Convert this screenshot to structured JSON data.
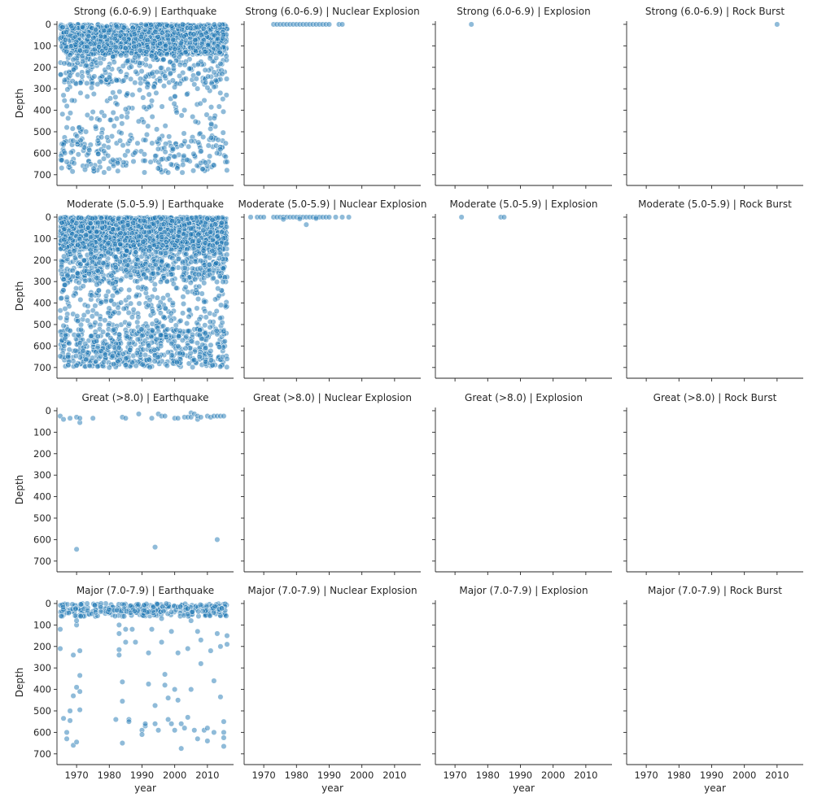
{
  "chart_data": {
    "type": "scatter",
    "facet_grid": {
      "rows": [
        "Strong (6.0-6.9)",
        "Moderate (5.0-5.9)",
        "Great (>8.0)",
        "Major (7.0-7.9)"
      ],
      "cols": [
        "Earthquake",
        "Nuclear Explosion",
        "Explosion",
        "Rock Burst"
      ]
    },
    "xlabel": "year",
    "ylabel": "Depth",
    "xlim": [
      1964,
      2018
    ],
    "ylim": [
      750,
      -15
    ],
    "y_inverted": true,
    "x_ticks": [
      1970,
      1980,
      1990,
      2000,
      2010
    ],
    "y_ticks": [
      0,
      100,
      200,
      300,
      400,
      500,
      600,
      700
    ],
    "grid": false,
    "marker_color": "#1f77b4",
    "marker_alpha": 0.5,
    "panels": [
      {
        "row": 0,
        "col": 0,
        "title": "Strong (6.0-6.9) | Earthquake",
        "dense_regions": [
          {
            "x_range": [
              1965,
              2016
            ],
            "y_range": [
              0,
              140
            ],
            "count": 1500
          },
          {
            "x_range": [
              1965,
              2016
            ],
            "y_range": [
              140,
              280
            ],
            "count": 260
          },
          {
            "x_range": [
              1965,
              2016
            ],
            "y_range": [
              280,
              520
            ],
            "count": 120
          },
          {
            "x_range": [
              1965,
              2016
            ],
            "y_range": [
              520,
              690
            ],
            "count": 220
          }
        ],
        "points": [
          [
            1966,
            330
          ],
          [
            1967,
            480
          ],
          [
            1966,
            560
          ],
          [
            1967,
            640
          ],
          [
            2016,
            640
          ],
          [
            1977,
            445
          ],
          [
            1985,
            395
          ],
          [
            1998,
            690
          ]
        ]
      },
      {
        "row": 0,
        "col": 1,
        "title": "Strong (6.0-6.9) | Nuclear Explosion",
        "points": [
          [
            1973,
            0
          ],
          [
            1974,
            0
          ],
          [
            1975,
            0
          ],
          [
            1976,
            0
          ],
          [
            1977,
            0
          ],
          [
            1978,
            0
          ],
          [
            1979,
            0
          ],
          [
            1980,
            0
          ],
          [
            1981,
            0
          ],
          [
            1982,
            0
          ],
          [
            1983,
            0
          ],
          [
            1984,
            0
          ],
          [
            1985,
            0
          ],
          [
            1986,
            0
          ],
          [
            1987,
            0
          ],
          [
            1988,
            0
          ],
          [
            1989,
            0
          ],
          [
            1990,
            0
          ],
          [
            1993,
            0
          ],
          [
            1994,
            0
          ]
        ]
      },
      {
        "row": 0,
        "col": 2,
        "title": "Strong (6.0-6.9) | Explosion",
        "points": [
          [
            1975,
            0
          ]
        ]
      },
      {
        "row": 0,
        "col": 3,
        "title": "Strong (6.0-6.9) | Rock Burst",
        "points": [
          [
            2010,
            0
          ]
        ]
      },
      {
        "row": 1,
        "col": 0,
        "title": "Moderate (5.0-5.9) | Earthquake",
        "dense_regions": [
          {
            "x_range": [
              1965,
              2016
            ],
            "y_range": [
              0,
              150
            ],
            "count": 2500
          },
          {
            "x_range": [
              1965,
              2016
            ],
            "y_range": [
              150,
              300
            ],
            "count": 500
          },
          {
            "x_range": [
              1965,
              2016
            ],
            "y_range": [
              300,
              520
            ],
            "count": 250
          },
          {
            "x_range": [
              1965,
              2016
            ],
            "y_range": [
              520,
              700
            ],
            "count": 550
          }
        ],
        "points": [
          [
            1966,
            340
          ],
          [
            1967,
            470
          ],
          [
            1970,
            690
          ],
          [
            1980,
            700
          ],
          [
            2016,
            660
          ]
        ]
      },
      {
        "row": 1,
        "col": 1,
        "title": "Moderate (5.0-5.9) | Nuclear Explosion",
        "points": [
          [
            1966,
            0
          ],
          [
            1968,
            0
          ],
          [
            1969,
            0
          ],
          [
            1970,
            0
          ],
          [
            1973,
            0
          ],
          [
            1974,
            0
          ],
          [
            1975,
            0
          ],
          [
            1976,
            0
          ],
          [
            1977,
            0
          ],
          [
            1978,
            0
          ],
          [
            1979,
            0
          ],
          [
            1980,
            0
          ],
          [
            1981,
            0
          ],
          [
            1982,
            0
          ],
          [
            1983,
            0
          ],
          [
            1984,
            0
          ],
          [
            1985,
            0
          ],
          [
            1986,
            0
          ],
          [
            1987,
            0
          ],
          [
            1988,
            0
          ],
          [
            1989,
            0
          ],
          [
            1990,
            0
          ],
          [
            1992,
            0
          ],
          [
            1994,
            0
          ],
          [
            1996,
            0
          ],
          [
            1983,
            35
          ],
          [
            1976,
            10
          ],
          [
            1981,
            8
          ],
          [
            1986,
            6
          ]
        ]
      },
      {
        "row": 1,
        "col": 2,
        "title": "Moderate (5.0-5.9) | Explosion",
        "points": [
          [
            1972,
            0
          ],
          [
            1984,
            0
          ],
          [
            1985,
            0
          ]
        ]
      },
      {
        "row": 1,
        "col": 3,
        "title": "Moderate (5.0-5.9) | Rock Burst",
        "points": []
      },
      {
        "row": 2,
        "col": 0,
        "title": "Great (>8.0) | Earthquake",
        "points": [
          [
            1965,
            25
          ],
          [
            1966,
            40
          ],
          [
            1968,
            35
          ],
          [
            1970,
            30
          ],
          [
            1971,
            55
          ],
          [
            1971,
            35
          ],
          [
            1975,
            35
          ],
          [
            1984,
            30
          ],
          [
            1985,
            35
          ],
          [
            1989,
            15
          ],
          [
            1993,
            35
          ],
          [
            1995,
            15
          ],
          [
            1996,
            25
          ],
          [
            1997,
            25
          ],
          [
            2000,
            35
          ],
          [
            2001,
            35
          ],
          [
            2003,
            30
          ],
          [
            2004,
            30
          ],
          [
            2005,
            10
          ],
          [
            2005,
            30
          ],
          [
            2006,
            15
          ],
          [
            2007,
            40
          ],
          [
            2007,
            25
          ],
          [
            2008,
            30
          ],
          [
            2010,
            25
          ],
          [
            2011,
            30
          ],
          [
            2012,
            25
          ],
          [
            2013,
            25
          ],
          [
            2014,
            25
          ],
          [
            2015,
            25
          ],
          [
            1970,
            645
          ],
          [
            1994,
            635
          ],
          [
            2013,
            600
          ]
        ]
      },
      {
        "row": 2,
        "col": 1,
        "title": "Great (>8.0) | Nuclear Explosion",
        "points": []
      },
      {
        "row": 2,
        "col": 2,
        "title": "Great (>8.0) | Explosion",
        "points": []
      },
      {
        "row": 2,
        "col": 3,
        "title": "Great (>8.0) | Rock Burst",
        "points": []
      },
      {
        "row": 3,
        "col": 0,
        "title": "Major (7.0-7.9) | Earthquake",
        "dense_regions": [
          {
            "x_range": [
              1965,
              2016
            ],
            "y_range": [
              0,
              60
            ],
            "count": 280
          }
        ],
        "points": [
          [
            1965,
            120
          ],
          [
            1965,
            210
          ],
          [
            1966,
            535
          ],
          [
            1967,
            600
          ],
          [
            1967,
            630
          ],
          [
            1968,
            500
          ],
          [
            1968,
            545
          ],
          [
            1969,
            240
          ],
          [
            1969,
            430
          ],
          [
            1969,
            660
          ],
          [
            1970,
            390
          ],
          [
            1970,
            645
          ],
          [
            1971,
            220
          ],
          [
            1971,
            335
          ],
          [
            1971,
            410
          ],
          [
            1971,
            495
          ],
          [
            1970,
            100
          ],
          [
            1970,
            80
          ],
          [
            1982,
            540
          ],
          [
            1983,
            100
          ],
          [
            1983,
            140
          ],
          [
            1983,
            215
          ],
          [
            1983,
            240
          ],
          [
            1984,
            365
          ],
          [
            1984,
            455
          ],
          [
            1984,
            650
          ],
          [
            1985,
            120
          ],
          [
            1985,
            180
          ],
          [
            1986,
            540
          ],
          [
            1986,
            550
          ],
          [
            1987,
            120
          ],
          [
            1988,
            180
          ],
          [
            1990,
            590
          ],
          [
            1990,
            610
          ],
          [
            1991,
            570
          ],
          [
            1991,
            560
          ],
          [
            1992,
            375
          ],
          [
            1992,
            230
          ],
          [
            1993,
            120
          ],
          [
            1994,
            475
          ],
          [
            1994,
            560
          ],
          [
            1995,
            590
          ],
          [
            1996,
            70
          ],
          [
            1996,
            180
          ],
          [
            1997,
            330
          ],
          [
            1997,
            380
          ],
          [
            1998,
            440
          ],
          [
            1998,
            540
          ],
          [
            1999,
            130
          ],
          [
            1999,
            560
          ],
          [
            2000,
            400
          ],
          [
            2000,
            590
          ],
          [
            2001,
            230
          ],
          [
            2001,
            450
          ],
          [
            2002,
            560
          ],
          [
            2002,
            675
          ],
          [
            2003,
            580
          ],
          [
            2004,
            530
          ],
          [
            2004,
            210
          ],
          [
            2005,
            400
          ],
          [
            2005,
            80
          ],
          [
            2006,
            590
          ],
          [
            2007,
            630
          ],
          [
            2007,
            130
          ],
          [
            2008,
            280
          ],
          [
            2008,
            170
          ],
          [
            2009,
            590
          ],
          [
            2010,
            640
          ],
          [
            2010,
            580
          ],
          [
            2011,
            220
          ],
          [
            2012,
            360
          ],
          [
            2012,
            600
          ],
          [
            2013,
            140
          ],
          [
            2014,
            435
          ],
          [
            2014,
            200
          ],
          [
            2015,
            550
          ],
          [
            2015,
            600
          ],
          [
            2015,
            625
          ],
          [
            2015,
            665
          ],
          [
            2016,
            190
          ],
          [
            2016,
            150
          ]
        ]
      },
      {
        "row": 3,
        "col": 1,
        "title": "Major (7.0-7.9) | Nuclear Explosion",
        "points": []
      },
      {
        "row": 3,
        "col": 2,
        "title": "Major (7.0-7.9) | Explosion",
        "points": []
      },
      {
        "row": 3,
        "col": 3,
        "title": "Major (7.0-7.9) | Rock Burst",
        "points": []
      }
    ]
  }
}
